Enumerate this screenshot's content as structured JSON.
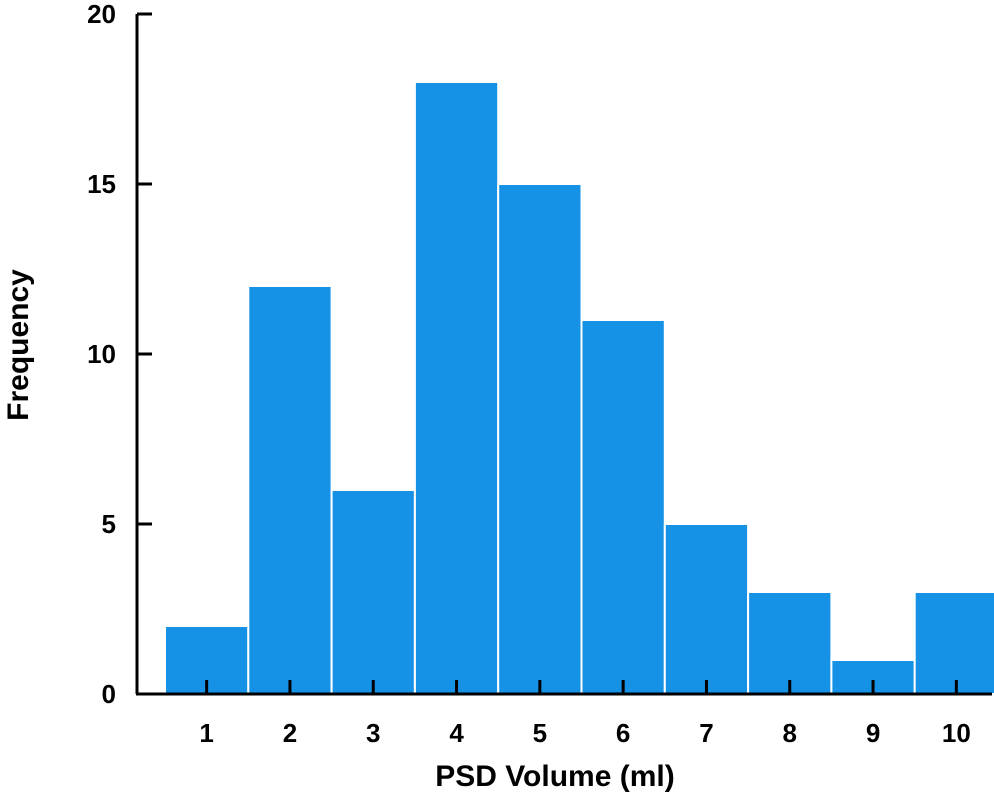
{
  "chart_data": {
    "type": "bar",
    "title": "",
    "xlabel": "PSD Volume (ml)",
    "ylabel": "Frequency",
    "categories": [
      "1",
      "2",
      "3",
      "4",
      "5",
      "6",
      "7",
      "8",
      "9",
      "10"
    ],
    "values": [
      2,
      12,
      6,
      18,
      15,
      11,
      5,
      3,
      1,
      3
    ],
    "ylim": [
      0,
      20
    ],
    "yticks": [
      "0",
      "5",
      "10",
      "15",
      "20"
    ],
    "grid": false,
    "legend": "none",
    "colors": {
      "bar": "#1592e6",
      "axis": "#000000"
    }
  }
}
